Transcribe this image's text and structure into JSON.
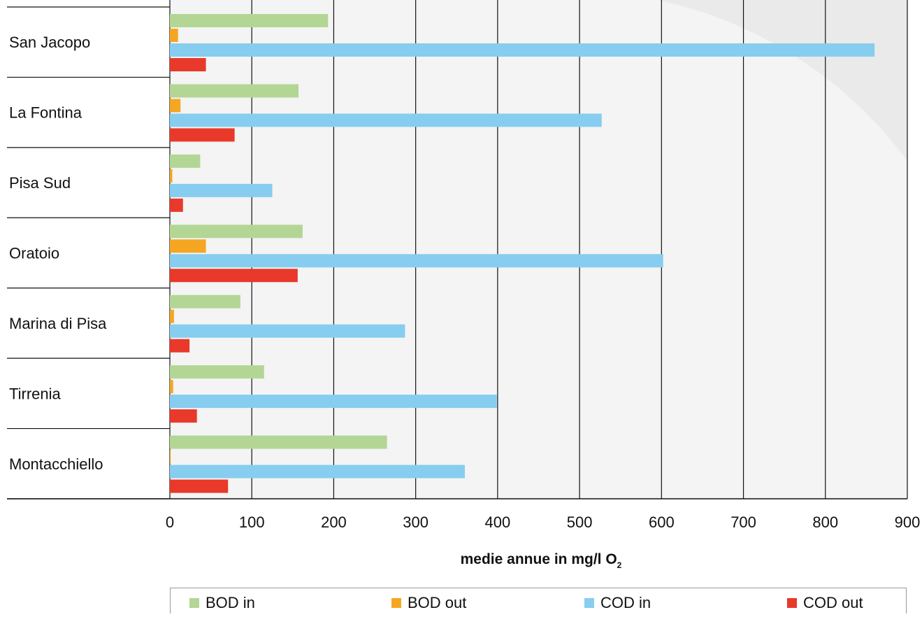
{
  "chart_data": {
    "type": "bar",
    "orientation": "horizontal",
    "categories": [
      "San Jacopo",
      "La Fontina",
      "Pisa Sud",
      "Oratoio",
      "Marina di Pisa",
      "Tirrenia",
      "Montacchiello"
    ],
    "series": [
      {
        "name": "BOD in",
        "color": "#b3d695",
        "values": [
          193,
          157,
          37,
          162,
          86,
          115,
          265
        ]
      },
      {
        "name": "BOD out",
        "color": "#f5a623",
        "values": [
          10,
          13,
          3,
          44,
          5,
          4,
          1
        ]
      },
      {
        "name": "COD in",
        "color": "#87cdf0",
        "values": [
          860,
          527,
          125,
          602,
          287,
          399,
          360
        ]
      },
      {
        "name": "COD out",
        "color": "#e8392a",
        "values": [
          44,
          79,
          16,
          156,
          24,
          33,
          71
        ]
      }
    ],
    "xlabel": "medie annue in mg/l O",
    "xlabel_subscript": "2",
    "xlim": [
      0,
      900
    ],
    "xticks": [
      "0",
      "100",
      "200",
      "300",
      "400",
      "500",
      "600",
      "700",
      "800",
      "900"
    ],
    "grid": "vertical",
    "legend_position": "bottom"
  }
}
